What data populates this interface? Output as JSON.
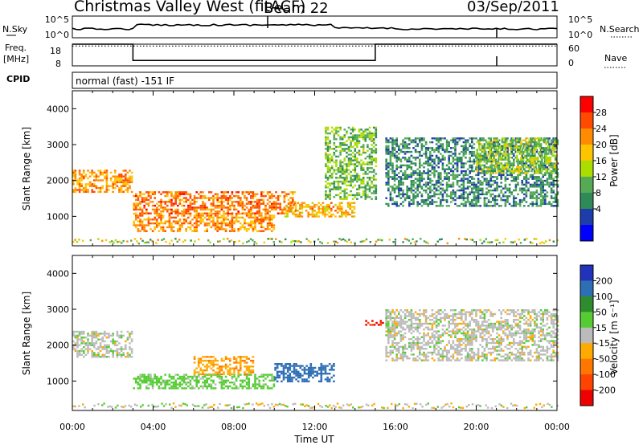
{
  "header": {
    "title": "Christmas Valley West (fitACF)",
    "beam": "Beam 22",
    "date": "03/Sep/2011"
  },
  "summary": {
    "nsky_label": "N.Sky",
    "nsearch_label": "N.Search",
    "nsky_ticks": [
      "10^5",
      "10^0"
    ],
    "freq_label_line1": "Freq.",
    "freq_label_line2": "[MHz]",
    "freq_ticks": [
      "18",
      "8"
    ],
    "nave_label": "Nave",
    "nave_ticks": [
      "60",
      "0"
    ],
    "cpid_label": "CPID",
    "cpid_value": "normal (fast) -151 IF"
  },
  "axes": {
    "xlabel": "Time UT",
    "xticks": [
      "00:00",
      "04:00",
      "08:00",
      "12:00",
      "16:00",
      "20:00",
      "00:00"
    ],
    "ylabel": "Slant Range [km]",
    "yticks": [
      "4000",
      "3000",
      "2000",
      "1000"
    ]
  },
  "power_scale": {
    "label": "Power [dB]",
    "ticks": [
      "28",
      "24",
      "20",
      "16",
      "12",
      "8",
      "4"
    ],
    "colors": [
      "#ff0000",
      "#ff4a00",
      "#ff8c00",
      "#ffc400",
      "#aadd00",
      "#55aa55",
      "#2e8b57",
      "#1e3caa",
      "#0000ff"
    ]
  },
  "velocity_scale": {
    "label": "Velocity [m s⁻¹]",
    "ticks": [
      "200",
      "100",
      "50",
      "15",
      "-15",
      "-50",
      "-100",
      "-200"
    ],
    "colors": [
      "#2233bb",
      "#2e6eb4",
      "#2e8b2e",
      "#55cc33",
      "#bbbbbb",
      "#ffaa00",
      "#ff7700",
      "#ff4400",
      "#ee0000"
    ]
  },
  "chart_data": [
    {
      "type": "line",
      "name": "summary: frequency and nave",
      "x_unit": "hours UT",
      "freq_mhz": [
        [
          0,
          18
        ],
        [
          3,
          18
        ],
        [
          3,
          10.5
        ],
        [
          15,
          10.5
        ],
        [
          15,
          18
        ],
        [
          24,
          18
        ]
      ],
      "nave": [
        [
          0,
          55
        ],
        [
          24,
          55
        ]
      ]
    },
    {
      "type": "heatmap",
      "name": "power",
      "x_range_hours": [
        0,
        24
      ],
      "y_range_km": [
        180,
        4500
      ],
      "features": [
        {
          "t0": 0,
          "t1": 3,
          "r0": 1700,
          "r1": 2300,
          "power_db": 22
        },
        {
          "t0": 3,
          "t1": 11,
          "r0": 1100,
          "r1": 1700,
          "power_db": 24
        },
        {
          "t0": 3,
          "t1": 10,
          "r0": 600,
          "r1": 1100,
          "power_db": 22
        },
        {
          "t0": 10.5,
          "t1": 14,
          "r0": 1000,
          "r1": 1400,
          "power_db": 20
        },
        {
          "t0": 12.5,
          "t1": 15,
          "r0": 1500,
          "r1": 3500,
          "power_db": 12
        },
        {
          "t0": 15.5,
          "t1": 24,
          "r0": 1300,
          "r1": 3200,
          "power_db": 8
        },
        {
          "t0": 20,
          "t1": 24,
          "r0": 2200,
          "r1": 3200,
          "power_db": 14
        }
      ]
    },
    {
      "type": "heatmap",
      "name": "velocity",
      "x_range_hours": [
        0,
        24
      ],
      "y_range_km": [
        180,
        4500
      ],
      "features": [
        {
          "t0": 0,
          "t1": 3,
          "r0": 1700,
          "r1": 2400,
          "velocity": 0
        },
        {
          "t0": 3,
          "t1": 10,
          "r0": 800,
          "r1": 1200,
          "velocity": 30
        },
        {
          "t0": 6,
          "t1": 9,
          "r0": 1200,
          "r1": 1700,
          "velocity": -40
        },
        {
          "t0": 10,
          "t1": 13,
          "r0": 1000,
          "r1": 1500,
          "velocity": 120
        },
        {
          "t0": 14.5,
          "t1": 15.5,
          "r0": 2550,
          "r1": 2700,
          "velocity": -200
        },
        {
          "t0": 15.5,
          "t1": 24,
          "r0": 1600,
          "r1": 3000,
          "velocity": 0
        }
      ]
    }
  ]
}
